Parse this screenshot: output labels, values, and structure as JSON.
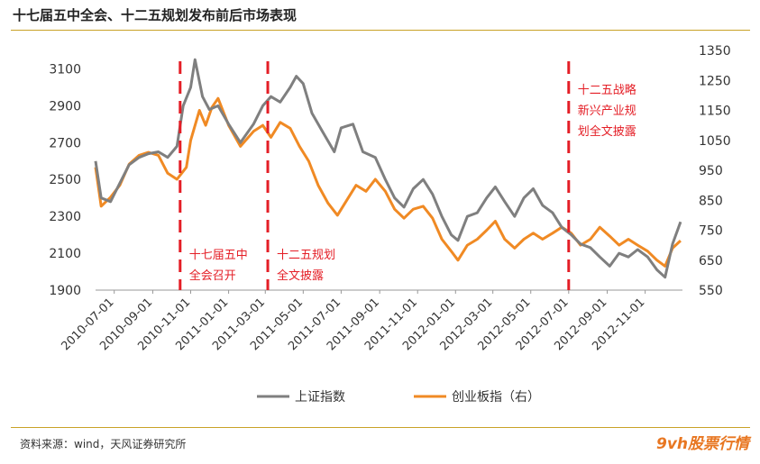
{
  "title": "十七届五中全会、十二五规划发布前后市场表现",
  "source": "资料来源：wind，天风证券研究所",
  "logo_text": "9vh股票行情",
  "colors": {
    "shanghai": "#7f7f7f",
    "chinext": "#f08a24",
    "marker": "#e41e26",
    "text_red": "#e41e26",
    "rule": "#c9a227"
  },
  "chart_data": {
    "type": "line",
    "x_range": [
      "2010-06-01",
      "2012-12-31"
    ],
    "x_ticks": [
      "2010-07-01",
      "2010-09-01",
      "2010-11-01",
      "2011-01-01",
      "2011-03-01",
      "2011-05-01",
      "2011-07-01",
      "2011-09-01",
      "2011-11-01",
      "2012-01-01",
      "2012-03-01",
      "2012-05-01",
      "2012-07-01",
      "2012-09-01",
      "2012-11-01"
    ],
    "y_left": {
      "min": 1900,
      "max": 3200,
      "ticks": [
        1900,
        2100,
        2300,
        2500,
        2700,
        2900,
        3100
      ]
    },
    "y_right": {
      "min": 550,
      "max": 1350,
      "ticks": [
        550,
        650,
        750,
        850,
        950,
        1050,
        1150,
        1250,
        1350
      ]
    },
    "series": [
      {
        "name": "上证指数",
        "axis": "left",
        "color": "#7f7f7f",
        "points": [
          [
            "2010-06-01",
            2600
          ],
          [
            "2010-06-10",
            2400
          ],
          [
            "2010-06-25",
            2380
          ],
          [
            "2010-07-10",
            2480
          ],
          [
            "2010-07-25",
            2580
          ],
          [
            "2010-08-10",
            2620
          ],
          [
            "2010-08-25",
            2640
          ],
          [
            "2010-09-10",
            2650
          ],
          [
            "2010-09-25",
            2620
          ],
          [
            "2010-10-10",
            2680
          ],
          [
            "2010-10-20",
            2900
          ],
          [
            "2010-11-01",
            3000
          ],
          [
            "2010-11-08",
            3150
          ],
          [
            "2010-11-20",
            2950
          ],
          [
            "2010-12-01",
            2880
          ],
          [
            "2010-12-15",
            2900
          ],
          [
            "2011-01-01",
            2800
          ],
          [
            "2011-01-20",
            2700
          ],
          [
            "2011-02-10",
            2800
          ],
          [
            "2011-02-25",
            2900
          ],
          [
            "2011-03-10",
            2950
          ],
          [
            "2011-03-25",
            2920
          ],
          [
            "2011-04-10",
            3000
          ],
          [
            "2011-04-20",
            3060
          ],
          [
            "2011-05-01",
            3020
          ],
          [
            "2011-05-15",
            2860
          ],
          [
            "2011-06-01",
            2760
          ],
          [
            "2011-06-20",
            2650
          ],
          [
            "2011-07-01",
            2780
          ],
          [
            "2011-07-20",
            2800
          ],
          [
            "2011-08-05",
            2650
          ],
          [
            "2011-08-25",
            2620
          ],
          [
            "2011-09-10",
            2500
          ],
          [
            "2011-09-25",
            2400
          ],
          [
            "2011-10-10",
            2350
          ],
          [
            "2011-10-25",
            2450
          ],
          [
            "2011-11-10",
            2500
          ],
          [
            "2011-11-25",
            2420
          ],
          [
            "2011-12-10",
            2300
          ],
          [
            "2011-12-25",
            2200
          ],
          [
            "2012-01-05",
            2170
          ],
          [
            "2012-01-20",
            2300
          ],
          [
            "2012-02-05",
            2320
          ],
          [
            "2012-02-20",
            2400
          ],
          [
            "2012-03-05",
            2460
          ],
          [
            "2012-03-20",
            2380
          ],
          [
            "2012-04-05",
            2300
          ],
          [
            "2012-04-20",
            2400
          ],
          [
            "2012-05-05",
            2450
          ],
          [
            "2012-05-20",
            2360
          ],
          [
            "2012-06-05",
            2320
          ],
          [
            "2012-06-20",
            2240
          ],
          [
            "2012-07-05",
            2200
          ],
          [
            "2012-07-20",
            2150
          ],
          [
            "2012-08-05",
            2130
          ],
          [
            "2012-08-20",
            2080
          ],
          [
            "2012-09-05",
            2030
          ],
          [
            "2012-09-20",
            2100
          ],
          [
            "2012-10-05",
            2080
          ],
          [
            "2012-10-20",
            2120
          ],
          [
            "2012-11-05",
            2080
          ],
          [
            "2012-11-20",
            2010
          ],
          [
            "2012-12-03",
            1970
          ],
          [
            "2012-12-15",
            2150
          ],
          [
            "2012-12-28",
            2270
          ]
        ]
      },
      {
        "name": "创业板指（右）",
        "axis": "right",
        "color": "#f08a24",
        "points": [
          [
            "2010-06-01",
            960
          ],
          [
            "2010-06-10",
            830
          ],
          [
            "2010-06-25",
            860
          ],
          [
            "2010-07-10",
            900
          ],
          [
            "2010-07-25",
            970
          ],
          [
            "2010-08-10",
            1000
          ],
          [
            "2010-08-25",
            1010
          ],
          [
            "2010-09-10",
            1000
          ],
          [
            "2010-09-25",
            940
          ],
          [
            "2010-10-10",
            920
          ],
          [
            "2010-10-25",
            960
          ],
          [
            "2010-11-01",
            1050
          ],
          [
            "2010-11-15",
            1150
          ],
          [
            "2010-11-25",
            1100
          ],
          [
            "2010-12-05",
            1160
          ],
          [
            "2010-12-15",
            1190
          ],
          [
            "2011-01-01",
            1100
          ],
          [
            "2011-01-20",
            1030
          ],
          [
            "2011-02-10",
            1080
          ],
          [
            "2011-02-25",
            1100
          ],
          [
            "2011-03-10",
            1060
          ],
          [
            "2011-03-25",
            1110
          ],
          [
            "2011-04-10",
            1090
          ],
          [
            "2011-04-25",
            1030
          ],
          [
            "2011-05-10",
            980
          ],
          [
            "2011-05-25",
            900
          ],
          [
            "2011-06-10",
            840
          ],
          [
            "2011-06-25",
            800
          ],
          [
            "2011-07-10",
            850
          ],
          [
            "2011-07-25",
            900
          ],
          [
            "2011-08-10",
            880
          ],
          [
            "2011-08-25",
            920
          ],
          [
            "2011-09-10",
            880
          ],
          [
            "2011-09-25",
            820
          ],
          [
            "2011-10-10",
            790
          ],
          [
            "2011-10-25",
            820
          ],
          [
            "2011-11-10",
            830
          ],
          [
            "2011-11-25",
            790
          ],
          [
            "2011-12-10",
            720
          ],
          [
            "2011-12-25",
            680
          ],
          [
            "2012-01-05",
            650
          ],
          [
            "2012-01-20",
            700
          ],
          [
            "2012-02-05",
            720
          ],
          [
            "2012-02-20",
            750
          ],
          [
            "2012-03-05",
            780
          ],
          [
            "2012-03-20",
            720
          ],
          [
            "2012-04-05",
            690
          ],
          [
            "2012-04-20",
            720
          ],
          [
            "2012-05-05",
            740
          ],
          [
            "2012-05-20",
            720
          ],
          [
            "2012-06-05",
            740
          ],
          [
            "2012-06-20",
            760
          ],
          [
            "2012-07-05",
            740
          ],
          [
            "2012-07-20",
            700
          ],
          [
            "2012-08-05",
            720
          ],
          [
            "2012-08-20",
            760
          ],
          [
            "2012-09-05",
            730
          ],
          [
            "2012-09-20",
            700
          ],
          [
            "2012-10-05",
            720
          ],
          [
            "2012-10-20",
            700
          ],
          [
            "2012-11-05",
            680
          ],
          [
            "2012-11-20",
            650
          ],
          [
            "2012-12-03",
            630
          ],
          [
            "2012-12-15",
            690
          ],
          [
            "2012-12-28",
            715
          ]
        ]
      }
    ],
    "events": [
      {
        "date": "2010-10-15",
        "label_lines": [
          "十七届五中",
          "全会召开"
        ],
        "label_position": "bottom"
      },
      {
        "date": "2011-03-05",
        "label_lines": [
          "十二五规划",
          "全文披露"
        ],
        "label_position": "bottom"
      },
      {
        "date": "2012-07-01",
        "label_lines": [
          "十二五战略",
          "新兴产业规",
          "划全文披露"
        ],
        "label_position": "top"
      }
    ],
    "legend_position": "bottom-center",
    "grid": false
  }
}
